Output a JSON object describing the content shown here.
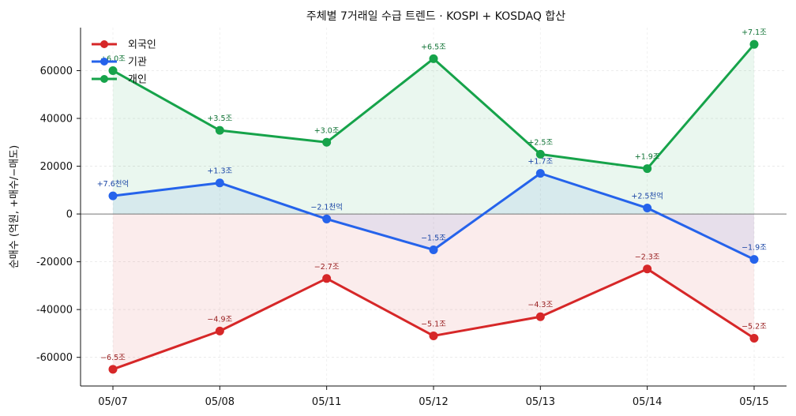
{
  "chart_data": {
    "type": "line",
    "title": "주체별 7거래일 수급 트렌드 · KOSPI + KOSDAQ 합산",
    "xlabel": "",
    "ylabel": "순매수 (억원, +매수/−매도)",
    "categories": [
      "05/07",
      "05/08",
      "05/11",
      "05/12",
      "05/13",
      "05/14",
      "05/15"
    ],
    "ylim": [
      -72000,
      78000
    ],
    "yticks": [
      -60000,
      -40000,
      -20000,
      0,
      20000,
      40000,
      60000
    ],
    "grid": true,
    "legend_position": "top-left",
    "series": [
      {
        "name": "외국인",
        "color": "#d62728",
        "values": [
          -65000,
          -49000,
          -27000,
          -51000,
          -43000,
          -23000,
          -52000
        ],
        "labels": [
          "−6.5조",
          "−4.9조",
          "−2.7조",
          "−5.1조",
          "−4.3조",
          "−2.3조",
          "−5.2조"
        ]
      },
      {
        "name": "기관",
        "color": "#2563eb",
        "values": [
          7600,
          13000,
          -2100,
          -15000,
          17000,
          2500,
          -19000
        ],
        "labels": [
          "+7.6천억",
          "+1.3조",
          "−2.1천억",
          "−1.5조",
          "+1.7조",
          "+2.5천억",
          "−1.9조"
        ]
      },
      {
        "name": "개인",
        "color": "#16a34a",
        "values": [
          60000,
          35000,
          30000,
          65000,
          25000,
          19000,
          71000
        ],
        "labels": [
          "+6.0조",
          "+3.5조",
          "+3.0조",
          "+6.5조",
          "+2.5조",
          "+1.9조",
          "+7.1조"
        ]
      }
    ]
  }
}
